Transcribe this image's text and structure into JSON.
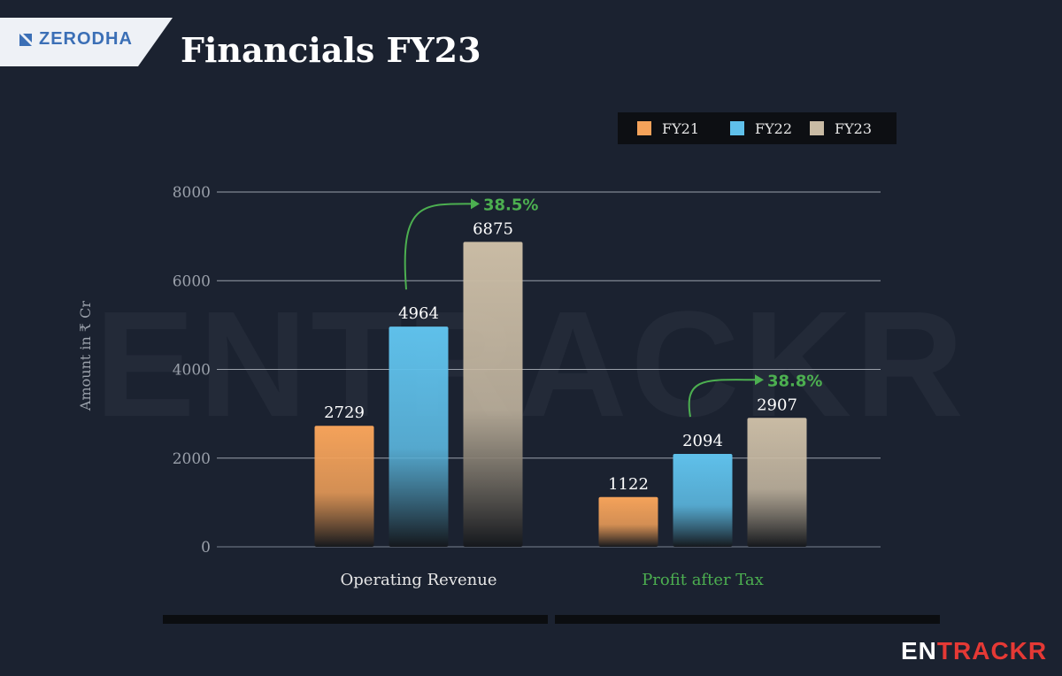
{
  "header": {
    "logo_text": "ZERODHA",
    "title": "Financials FY23"
  },
  "watermark": "ENTRACKR",
  "footer": {
    "brand_part1": "EN",
    "brand_part2": "TRACKR",
    "brand_color1": "#ffffff",
    "brand_color2": "#e53935"
  },
  "chart_data": {
    "type": "bar",
    "categories": [
      "Operating Revenue",
      "Profit after Tax"
    ],
    "category_label_colors": [
      "#e6e6e6",
      "#4caf50"
    ],
    "series": [
      {
        "name": "FY21",
        "color": "#f4a25a",
        "values": [
          2729,
          1122
        ]
      },
      {
        "name": "FY22",
        "color": "#5fc0ea",
        "values": [
          4964,
          2094
        ]
      },
      {
        "name": "FY23",
        "color": "#c9bba4",
        "values": [
          6875,
          2907
        ]
      }
    ],
    "ylabel": "Amount in ₹ Cr",
    "ylim": [
      0,
      8000
    ],
    "yticks": [
      0,
      2000,
      4000,
      6000,
      8000
    ],
    "grid": true,
    "legend_position": "top-right",
    "annotations": [
      {
        "text": "38.5%",
        "category": 0,
        "from_series": 1,
        "to_series": 2,
        "color": "#4caf50"
      },
      {
        "text": "38.8%",
        "category": 1,
        "from_series": 1,
        "to_series": 2,
        "color": "#4caf50"
      }
    ]
  }
}
